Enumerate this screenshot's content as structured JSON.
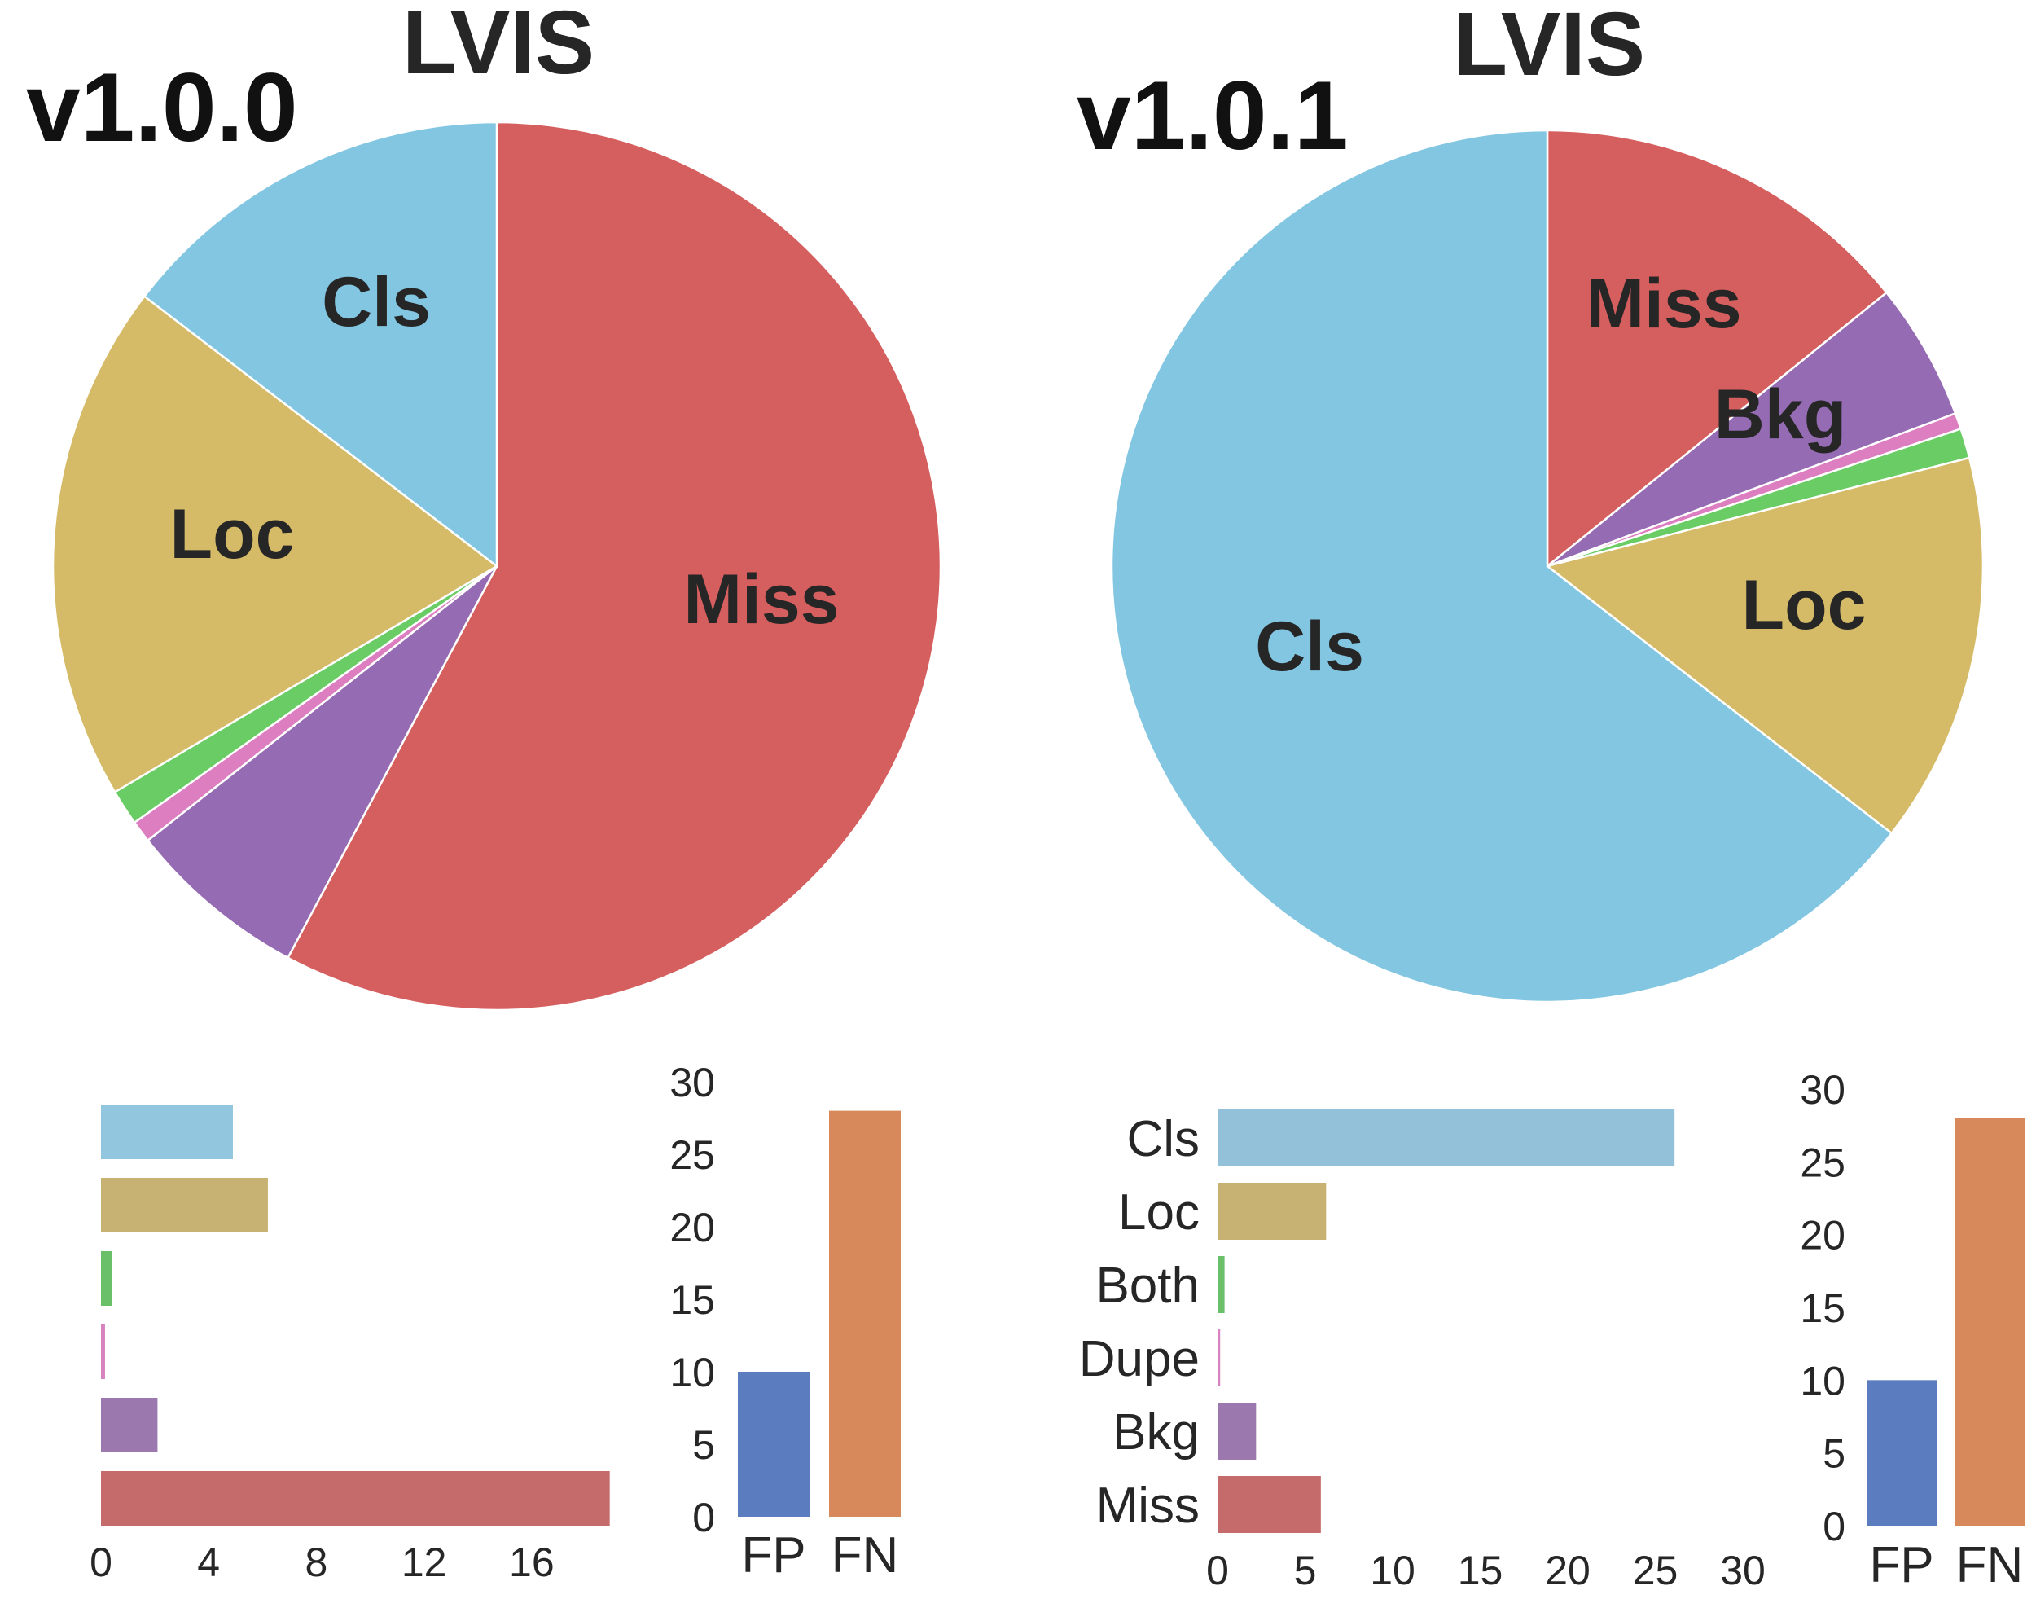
{
  "chart_data": [
    {
      "type": "pie",
      "title": "LVIS",
      "version_label": "v1.0.0",
      "slices": [
        {
          "label": "Miss",
          "value": 57.8,
          "color": "#d55f5e"
        },
        {
          "label": "",
          "value": 6.6,
          "color": "#956cb4"
        },
        {
          "label": "",
          "value": 0.8,
          "color": "#dc7ec0"
        },
        {
          "label": "",
          "value": 1.3,
          "color": "#6acc64"
        },
        {
          "label": "Loc",
          "value": 18.9,
          "color": "#d5bb67"
        },
        {
          "label": "Cls",
          "value": 14.6,
          "color": "#82c6e2"
        }
      ]
    },
    {
      "type": "pie",
      "title": "LVIS",
      "version_label": "v1.0.1",
      "slices": [
        {
          "label": "Miss",
          "value": 14.2,
          "color": "#d55f5e"
        },
        {
          "label": "Bkg",
          "value": 5.1,
          "color": "#956cb4"
        },
        {
          "label": "",
          "value": 0.6,
          "color": "#dc7ec0"
        },
        {
          "label": "",
          "value": 1.1,
          "color": "#6acc64"
        },
        {
          "label": "Loc",
          "value": 14.5,
          "color": "#d5bb67"
        },
        {
          "label": "Cls",
          "value": 64.5,
          "color": "#82c6e2"
        }
      ]
    },
    {
      "type": "bar",
      "orientation": "horizontal",
      "categories": [
        "",
        "",
        "",
        "",
        "",
        ""
      ],
      "values": [
        4.9,
        6.2,
        0.4,
        0.15,
        2.1,
        18.9
      ],
      "colors": [
        "#92c5de",
        "#c8b273",
        "#6abf69",
        "#d882c2",
        "#9b79ae",
        "#c66b6b"
      ],
      "xlim": [
        0,
        19
      ],
      "xticks": [
        "0",
        "4",
        "8",
        "12",
        "16"
      ]
    },
    {
      "type": "bar",
      "categories": [
        "FP",
        "FN"
      ],
      "values": [
        10,
        28
      ],
      "colors": [
        "#5b7dbf",
        "#d8895b"
      ],
      "ylim": [
        0,
        30
      ],
      "yticks": [
        "0",
        "5",
        "10",
        "15",
        "20",
        "25",
        "30"
      ]
    },
    {
      "type": "bar",
      "orientation": "horizontal",
      "categories": [
        "Cls",
        "Loc",
        "Both",
        "Dupe",
        "Bkg",
        "Miss"
      ],
      "values": [
        26.1,
        6.2,
        0.4,
        0.15,
        2.2,
        5.9
      ],
      "colors": [
        "#92c1d9",
        "#c8b273",
        "#6abf69",
        "#d882c2",
        "#9b79ae",
        "#c66b6b"
      ],
      "xlim": [
        0,
        30
      ],
      "xticks": [
        "0",
        "5",
        "10",
        "15",
        "20",
        "25",
        "30"
      ]
    },
    {
      "type": "bar",
      "categories": [
        "FP",
        "FN"
      ],
      "values": [
        10,
        28
      ],
      "colors": [
        "#5b7dbf",
        "#d8895b"
      ],
      "ylim": [
        0,
        30
      ],
      "yticks": [
        "0",
        "5",
        "10",
        "15",
        "20",
        "25",
        "30"
      ]
    }
  ]
}
